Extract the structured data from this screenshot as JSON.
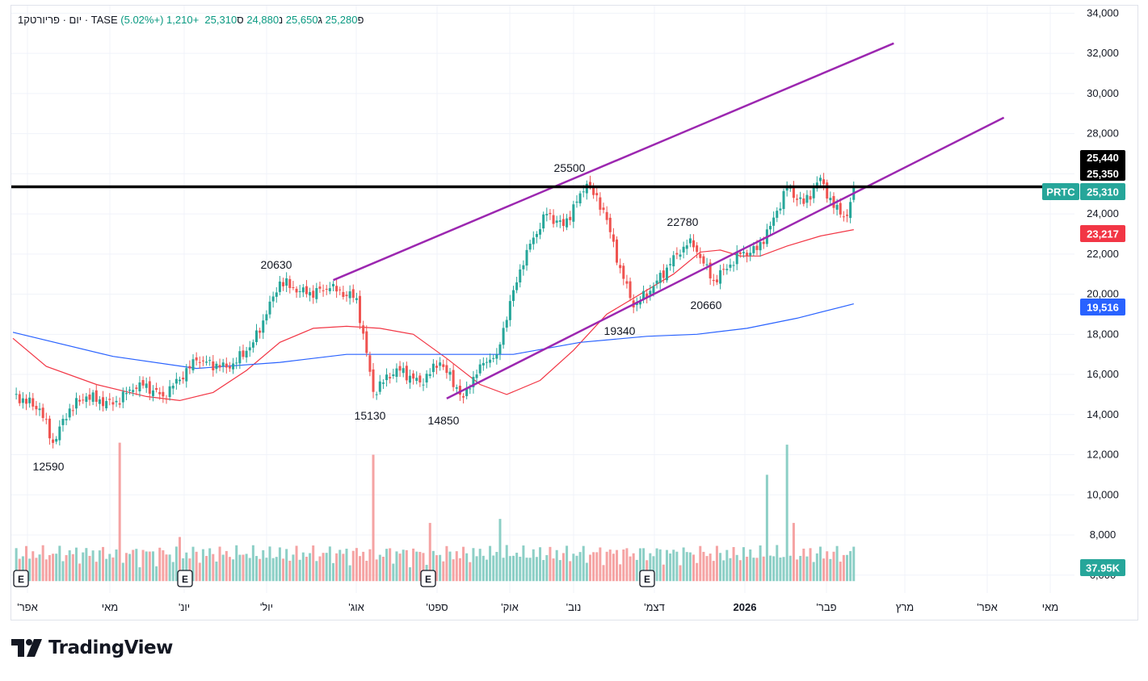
{
  "legend": {
    "symbol_line": "1יום · פריורטק · TASE",
    "open_label": "פ",
    "open": "25,280",
    "high_label": "ג",
    "high": "25,650",
    "low_label": "נ",
    "low": "24,880",
    "close_label": "ס",
    "close": "25,310",
    "change": "+1,210 (+5.02%)"
  },
  "colors": {
    "up": "#26a69a",
    "down": "#ef5350",
    "ma_short": "#f23645",
    "ma_long": "#2962ff",
    "channel": "#9c27b0",
    "vol_up": "#8ccfc6",
    "vol_down": "#f5a3a3"
  },
  "chart_data": {
    "type": "candlestick",
    "symbol": "PRTC",
    "y_axis": {
      "range": [
        5600,
        34500
      ],
      "ticks": [
        "34,000",
        "32,000",
        "30,000",
        "28,000",
        "26,000",
        "24,000",
        "22,000",
        "20,000",
        "18,000",
        "16,000",
        "14,000",
        "12,000",
        "10,000",
        "8,000",
        "6,000"
      ]
    },
    "x_axis": {
      "labels": [
        "'אפר",
        "מאי",
        "'יונ",
        "'יול",
        "'אוג",
        "'ספט",
        "'אוק",
        "'נוב",
        "'דצמ",
        "2026",
        "'פבר",
        "מרץ",
        "'אפר",
        "מאי"
      ]
    },
    "price_tags": {
      "high_tag": "25,440",
      "low_tag": "25,350",
      "symbol": "PRTC",
      "last": "25,310",
      "ma_short": "23,217",
      "ma_long": "19,516",
      "volume": "37.95K"
    },
    "annotations": [
      "12590",
      "20630",
      "15130",
      "14850",
      "25500",
      "19340",
      "22780",
      "20660"
    ],
    "earnings_marker": "E",
    "pivots": [
      [
        0,
        15000
      ],
      [
        8,
        14300
      ],
      [
        12,
        12590
      ],
      [
        17,
        14300
      ],
      [
        22,
        14900
      ],
      [
        30,
        14500
      ],
      [
        38,
        15600
      ],
      [
        45,
        14900
      ],
      [
        55,
        16700
      ],
      [
        65,
        16300
      ],
      [
        72,
        17600
      ],
      [
        76,
        19000
      ],
      [
        80,
        20630
      ],
      [
        88,
        20000
      ],
      [
        95,
        20300
      ],
      [
        103,
        19800
      ],
      [
        108,
        15130
      ],
      [
        115,
        16300
      ],
      [
        122,
        15600
      ],
      [
        128,
        16600
      ],
      [
        135,
        14850
      ],
      [
        140,
        16500
      ],
      [
        145,
        17000
      ],
      [
        150,
        20200
      ],
      [
        154,
        22200
      ],
      [
        160,
        24000
      ],
      [
        165,
        23400
      ],
      [
        172,
        25500
      ],
      [
        177,
        24200
      ],
      [
        182,
        21300
      ],
      [
        186,
        19340
      ],
      [
        192,
        20400
      ],
      [
        197,
        21500
      ],
      [
        203,
        22780
      ],
      [
        206,
        21800
      ],
      [
        210,
        20660
      ],
      [
        218,
        22000
      ],
      [
        223,
        22200
      ],
      [
        227,
        23400
      ],
      [
        232,
        25300
      ],
      [
        237,
        24500
      ],
      [
        242,
        25800
      ],
      [
        246,
        24300
      ],
      [
        250,
        23900
      ],
      [
        252,
        25310
      ]
    ],
    "ma_short": [
      [
        0,
        17800
      ],
      [
        10,
        16400
      ],
      [
        25,
        15500
      ],
      [
        40,
        14900
      ],
      [
        50,
        14700
      ],
      [
        60,
        15100
      ],
      [
        70,
        16200
      ],
      [
        80,
        17600
      ],
      [
        90,
        18300
      ],
      [
        100,
        18400
      ],
      [
        110,
        18300
      ],
      [
        120,
        18000
      ],
      [
        130,
        16800
      ],
      [
        140,
        15500
      ],
      [
        148,
        15000
      ],
      [
        158,
        15700
      ],
      [
        168,
        17200
      ],
      [
        178,
        19000
      ],
      [
        188,
        20000
      ],
      [
        198,
        21000
      ],
      [
        206,
        22100
      ],
      [
        212,
        22200
      ],
      [
        218,
        21900
      ],
      [
        224,
        21900
      ],
      [
        232,
        22400
      ],
      [
        242,
        22900
      ],
      [
        252,
        23217
      ]
    ],
    "ma_long": [
      [
        0,
        18100
      ],
      [
        30,
        16900
      ],
      [
        55,
        16300
      ],
      [
        80,
        16600
      ],
      [
        100,
        17000
      ],
      [
        115,
        17000
      ],
      [
        130,
        17000
      ],
      [
        150,
        17000
      ],
      [
        170,
        17600
      ],
      [
        190,
        17900
      ],
      [
        205,
        18000
      ],
      [
        220,
        18300
      ],
      [
        235,
        18800
      ],
      [
        252,
        19516
      ]
    ],
    "channel_lines": [
      {
        "from": [
          96,
          20700
        ],
        "to": [
          264,
          32500
        ]
      },
      {
        "from": [
          130,
          14800
        ],
        "to": [
          297,
          28800
        ]
      }
    ],
    "resistance_level": 25350,
    "volume_spikes": [
      [
        32,
        12600
      ],
      [
        50,
        7900
      ],
      [
        108,
        12000
      ],
      [
        125,
        8600
      ],
      [
        146,
        8800
      ],
      [
        226,
        11000
      ],
      [
        232,
        12500
      ],
      [
        234,
        8600
      ]
    ]
  }
}
